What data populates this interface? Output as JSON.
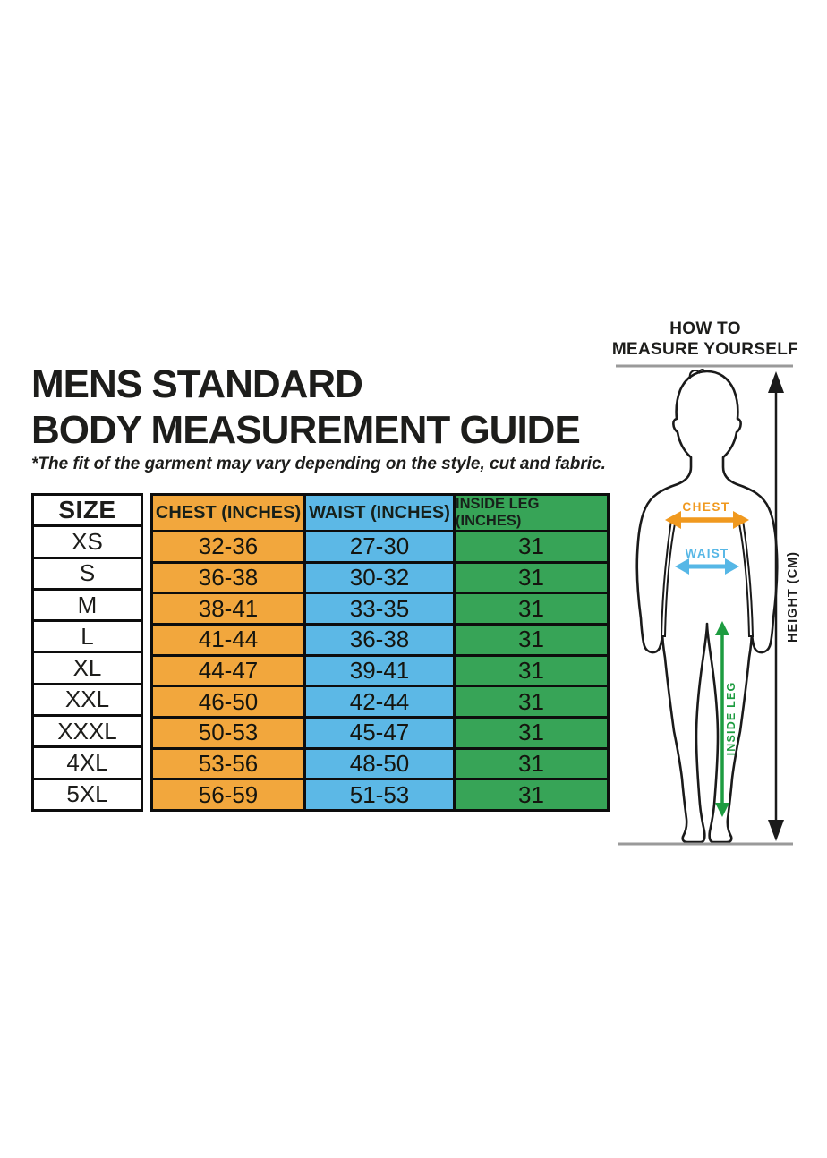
{
  "title": {
    "line1": "MENS STANDARD",
    "line2": "BODY MEASUREMENT GUIDE"
  },
  "disclaimer": "*The fit of the garment may vary depending on the style, cut and fabric.",
  "size_table": {
    "headers": [
      "SIZE",
      "CHEST (INCHES)",
      "WAIST (INCHES)",
      "INSIDE LEG (INCHES)"
    ],
    "rows": [
      {
        "size": "XS",
        "chest": "32-36",
        "waist": "27-30",
        "inside_leg": "31"
      },
      {
        "size": "S",
        "chest": "36-38",
        "waist": "30-32",
        "inside_leg": "31"
      },
      {
        "size": "M",
        "chest": "38-41",
        "waist": "33-35",
        "inside_leg": "31"
      },
      {
        "size": "L",
        "chest": "41-44",
        "waist": "36-38",
        "inside_leg": "31"
      },
      {
        "size": "XL",
        "chest": "44-47",
        "waist": "39-41",
        "inside_leg": "31"
      },
      {
        "size": "XXL",
        "chest": "46-50",
        "waist": "42-44",
        "inside_leg": "31"
      },
      {
        "size": "XXXL",
        "chest": "50-53",
        "waist": "45-47",
        "inside_leg": "31"
      },
      {
        "size": "4XL",
        "chest": "53-56",
        "waist": "48-50",
        "inside_leg": "31"
      },
      {
        "size": "5XL",
        "chest": "56-59",
        "waist": "51-53",
        "inside_leg": "31"
      }
    ]
  },
  "measure_panel": {
    "heading_line1": "HOW TO",
    "heading_line2": "MEASURE YOURSELF",
    "chest_label": "CHEST",
    "waist_label": "WAIST",
    "inside_leg_label": "INSIDE LEG",
    "height_label": "HEIGHT (CM)"
  },
  "colors": {
    "chest_column": "#F2A73D",
    "waist_column": "#5CB8E6",
    "inside_leg_column": "#37A457",
    "chest_arrow": "#F0991F",
    "waist_arrow": "#56B7E6",
    "inside_leg_arrow": "#1D9C40",
    "text": "#1D1D1B",
    "gray_line": "#9A9A9A"
  },
  "chart_data": {
    "type": "table",
    "title": "MENS STANDARD BODY MEASUREMENT GUIDE",
    "note": "*The fit of the garment may vary depending on the style, cut and fabric.",
    "columns": [
      "SIZE",
      "CHEST (INCHES)",
      "WAIST (INCHES)",
      "INSIDE LEG (INCHES)"
    ],
    "rows": [
      [
        "XS",
        "32-36",
        "27-30",
        "31"
      ],
      [
        "S",
        "36-38",
        "30-32",
        "31"
      ],
      [
        "M",
        "38-41",
        "33-35",
        "31"
      ],
      [
        "L",
        "41-44",
        "36-38",
        "31"
      ],
      [
        "XL",
        "44-47",
        "39-41",
        "31"
      ],
      [
        "XXL",
        "46-50",
        "42-44",
        "31"
      ],
      [
        "XXXL",
        "50-53",
        "45-47",
        "31"
      ],
      [
        "4XL",
        "53-56",
        "48-50",
        "31"
      ],
      [
        "5XL",
        "56-59",
        "51-53",
        "31"
      ]
    ]
  }
}
